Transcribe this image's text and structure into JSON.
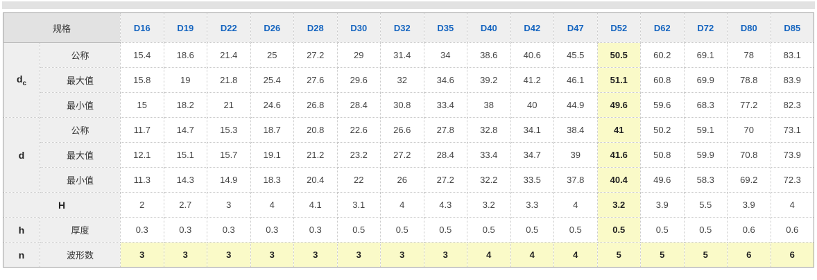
{
  "colors": {
    "accent_header_text": "#1565c0",
    "highlight_bg": "#fafac8",
    "corner_header_bg": "#e2e2e2",
    "header_bg": "#efefef",
    "top_bar_bg": "#e2e2e2"
  },
  "chart_data": {
    "type": "table",
    "title": "",
    "corner_label": "规格",
    "columns": [
      "D16",
      "D19",
      "D22",
      "D26",
      "D28",
      "D30",
      "D32",
      "D35",
      "D40",
      "D42",
      "D47",
      "D52",
      "D62",
      "D72",
      "D80",
      "D85"
    ],
    "highlight_column": "D52",
    "highlight_column_index": 11,
    "row_groups": [
      {
        "symbol": "d",
        "subscript": "c",
        "merged": false,
        "highlight_row": false,
        "rows": [
          {
            "label": "公称",
            "values": [
              15.4,
              18.6,
              21.4,
              25,
              27.2,
              29,
              31.4,
              34,
              38.6,
              40.6,
              45.5,
              50.5,
              60.2,
              69.1,
              78,
              83.1
            ]
          },
          {
            "label": "最大值",
            "values": [
              15.8,
              19,
              21.8,
              25.4,
              27.6,
              29.6,
              32,
              34.6,
              39.2,
              41.2,
              46.1,
              51.1,
              60.8,
              69.9,
              78.8,
              83.9
            ]
          },
          {
            "label": "最小值",
            "values": [
              15,
              18.2,
              21,
              24.6,
              26.8,
              28.4,
              30.8,
              33.4,
              38,
              40,
              44.9,
              49.6,
              59.6,
              68.3,
              77.2,
              82.3
            ]
          }
        ]
      },
      {
        "symbol": "d",
        "subscript": "",
        "merged": false,
        "highlight_row": false,
        "rows": [
          {
            "label": "公称",
            "values": [
              11.7,
              14.7,
              15.3,
              18.7,
              20.8,
              22.6,
              26.6,
              27.8,
              32.8,
              34.1,
              38.4,
              41,
              50.2,
              59.1,
              70,
              73.1
            ]
          },
          {
            "label": "最大值",
            "values": [
              12.1,
              15.1,
              15.7,
              19.1,
              21.2,
              23.2,
              27.2,
              28.4,
              33.4,
              34.7,
              39,
              41.6,
              50.8,
              59.9,
              70.8,
              73.9
            ]
          },
          {
            "label": "最小值",
            "values": [
              11.3,
              14.3,
              14.9,
              18.3,
              20.4,
              22,
              26,
              27.2,
              32.2,
              33.5,
              37.8,
              40.4,
              49.6,
              58.3,
              69.2,
              72.3
            ]
          }
        ]
      },
      {
        "symbol": "H",
        "subscript": "",
        "merged": true,
        "highlight_row": false,
        "rows": [
          {
            "label": "",
            "values": [
              2,
              2.7,
              3,
              4,
              4.1,
              3.1,
              4,
              4.3,
              3.2,
              3.3,
              4,
              3.2,
              3.9,
              5.5,
              3.9,
              4
            ]
          }
        ]
      },
      {
        "symbol": "h",
        "subscript": "",
        "merged": false,
        "highlight_row": false,
        "rows": [
          {
            "label": "厚度",
            "values": [
              0.3,
              0.3,
              0.3,
              0.3,
              0.3,
              0.5,
              0.5,
              0.5,
              0.5,
              0.5,
              0.5,
              0.5,
              0.5,
              0.5,
              0.6,
              0.6
            ]
          }
        ]
      },
      {
        "symbol": "n",
        "subscript": "",
        "merged": false,
        "highlight_row": true,
        "rows": [
          {
            "label": "波形数",
            "values": [
              3,
              3,
              3,
              3,
              3,
              3,
              3,
              3,
              4,
              4,
              4,
              5,
              5,
              5,
              6,
              6
            ]
          }
        ]
      }
    ]
  }
}
